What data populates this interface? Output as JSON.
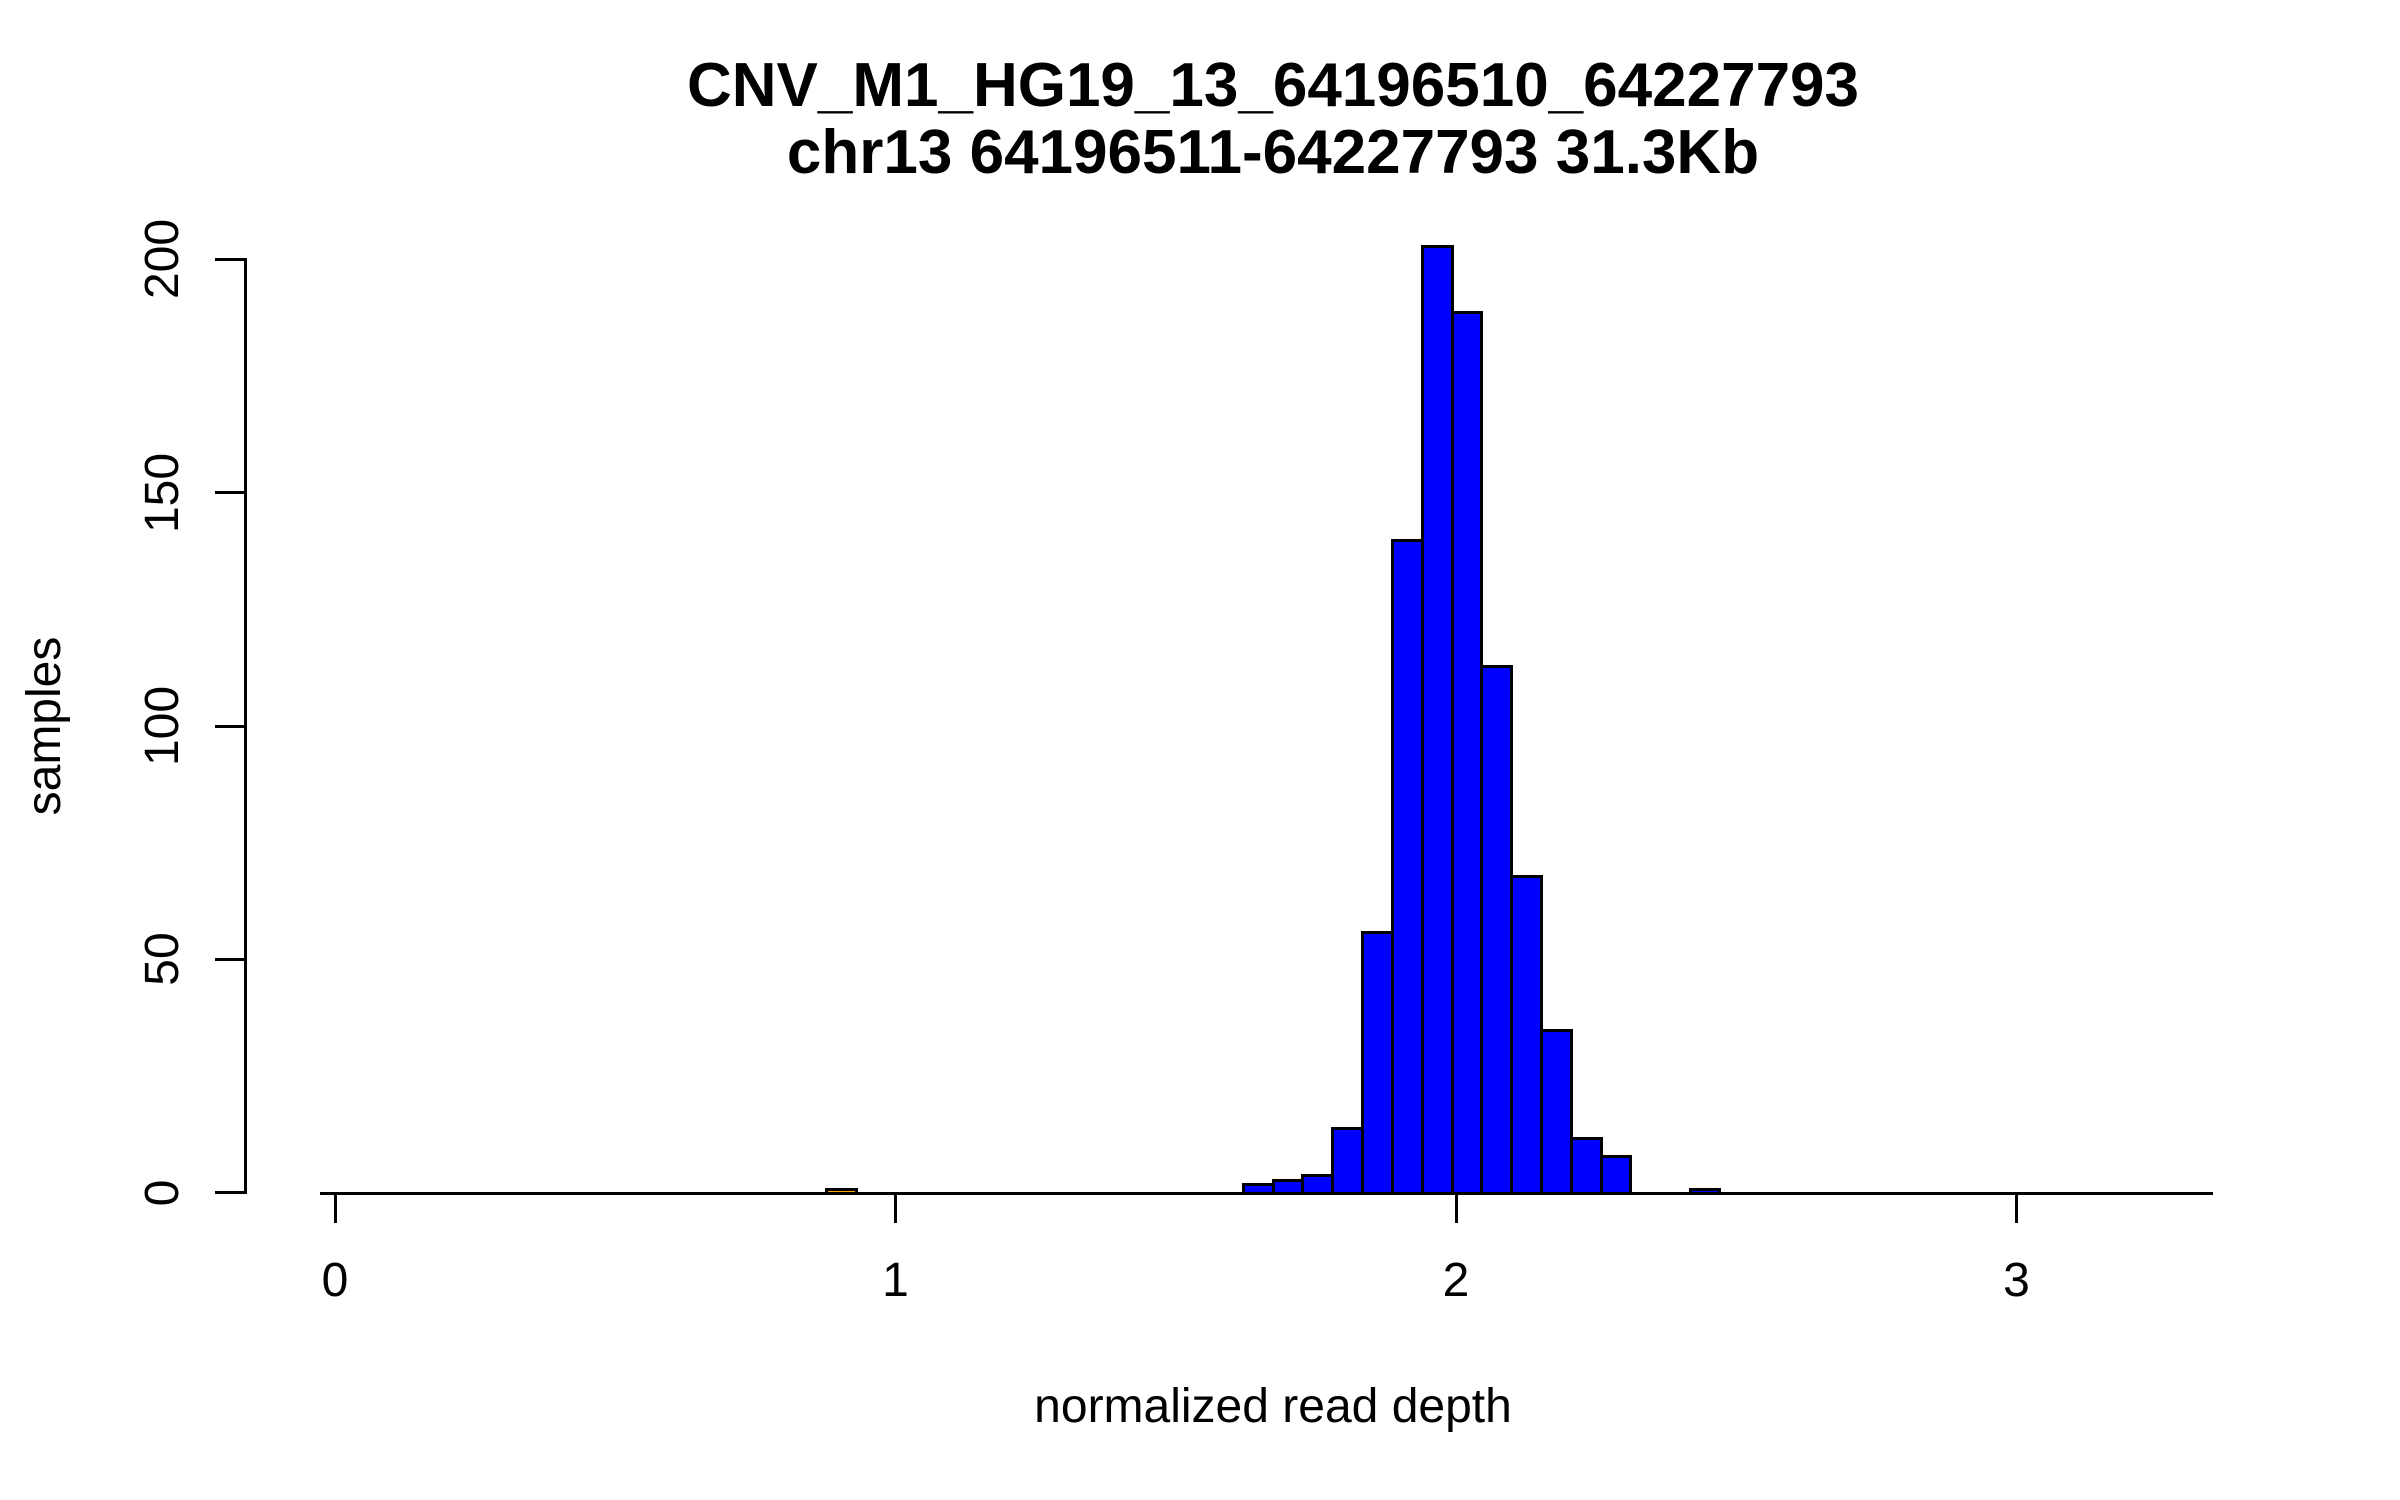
{
  "figure": {
    "title": "CNV_M1_HG19_13_64196510_64227793",
    "subtitle": "chr13 64196511-64227793 31.3Kb"
  },
  "chart_data": {
    "type": "bar",
    "subtype": "histogram",
    "title": "CNV_M1_HG19_13_64196510_64227793",
    "subtitle": "chr13 64196511-64227793 31.3Kb",
    "xlabel": "normalized read depth",
    "ylabel": "samples",
    "x_tick_values": [
      0,
      1,
      2,
      3
    ],
    "x_tick_labels": [
      "0",
      "1",
      "2",
      "3"
    ],
    "y_tick_values": [
      0,
      50,
      100,
      150,
      200
    ],
    "y_tick_labels": [
      "0",
      "50",
      "100",
      "150",
      "200"
    ],
    "xlim": [
      -0.03,
      3.37
    ],
    "ylim": [
      0,
      200
    ],
    "grid": false,
    "legend": null,
    "bin_width": 0.0531,
    "bar_fill_default": "#0000FF",
    "bar_fill_outlier": "#FFA500",
    "bar_outline": "#000000",
    "bins": [
      {
        "start": 0.877,
        "end": 0.93,
        "count": 1,
        "color": "#FFA500"
      },
      {
        "start": 0.93,
        "end": 0.983,
        "count": 0,
        "color": null
      },
      {
        "start": 0.983,
        "end": 1.036,
        "count": 0,
        "color": null
      },
      {
        "start": 1.036,
        "end": 1.09,
        "count": 0,
        "color": null
      },
      {
        "start": 1.09,
        "end": 1.143,
        "count": 0,
        "color": null
      },
      {
        "start": 1.143,
        "end": 1.196,
        "count": 0,
        "color": null
      },
      {
        "start": 1.196,
        "end": 1.249,
        "count": 0,
        "color": null
      },
      {
        "start": 1.249,
        "end": 1.302,
        "count": 0,
        "color": null
      },
      {
        "start": 1.302,
        "end": 1.355,
        "count": 0,
        "color": null
      },
      {
        "start": 1.355,
        "end": 1.408,
        "count": 0,
        "color": null
      },
      {
        "start": 1.408,
        "end": 1.462,
        "count": 0,
        "color": null
      },
      {
        "start": 1.462,
        "end": 1.515,
        "count": 0,
        "color": null
      },
      {
        "start": 1.515,
        "end": 1.568,
        "count": 0,
        "color": null
      },
      {
        "start": 1.568,
        "end": 1.621,
        "count": 0,
        "color": null
      },
      {
        "start": 1.621,
        "end": 1.674,
        "count": 2,
        "color": "#0000FF"
      },
      {
        "start": 1.674,
        "end": 1.727,
        "count": 3,
        "color": "#0000FF"
      },
      {
        "start": 1.727,
        "end": 1.78,
        "count": 4,
        "color": "#0000FF"
      },
      {
        "start": 1.78,
        "end": 1.834,
        "count": 14,
        "color": "#0000FF"
      },
      {
        "start": 1.834,
        "end": 1.887,
        "count": 56,
        "color": "#0000FF"
      },
      {
        "start": 1.887,
        "end": 1.94,
        "count": 140,
        "color": "#0000FF"
      },
      {
        "start": 1.94,
        "end": 1.993,
        "count": 203,
        "color": "#0000FF"
      },
      {
        "start": 1.993,
        "end": 2.046,
        "count": 189,
        "color": "#0000FF"
      },
      {
        "start": 2.046,
        "end": 2.099,
        "count": 113,
        "color": "#0000FF"
      },
      {
        "start": 2.099,
        "end": 2.152,
        "count": 68,
        "color": "#0000FF"
      },
      {
        "start": 2.152,
        "end": 2.206,
        "count": 35,
        "color": "#0000FF"
      },
      {
        "start": 2.206,
        "end": 2.259,
        "count": 12,
        "color": "#0000FF"
      },
      {
        "start": 2.259,
        "end": 2.312,
        "count": 8,
        "color": "#0000FF"
      },
      {
        "start": 2.312,
        "end": 2.365,
        "count": 0,
        "color": null
      },
      {
        "start": 2.365,
        "end": 2.418,
        "count": 0,
        "color": null
      },
      {
        "start": 2.418,
        "end": 2.471,
        "count": 1,
        "color": "#0000FF"
      }
    ]
  }
}
